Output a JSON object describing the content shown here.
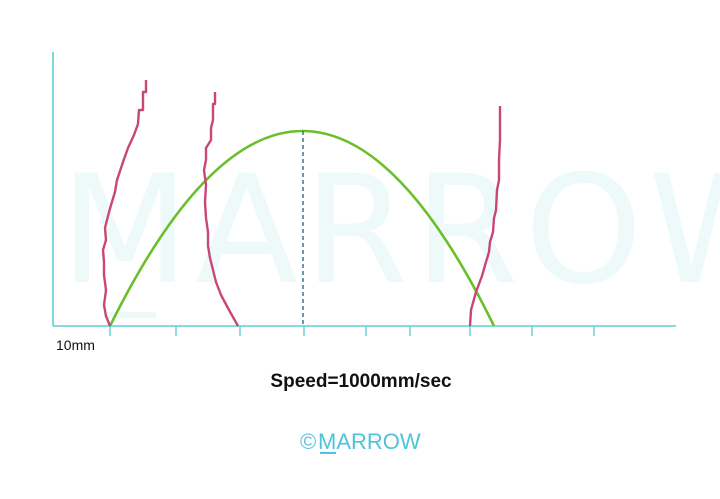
{
  "colors": {
    "axis": "#5ecfd3",
    "curve": "#6abf2a",
    "trace": "#c94774",
    "dashed": "#2a6b8a",
    "watermark": "#eefafa",
    "brand": "#4fc3d8",
    "text": "#111111"
  },
  "labels": {
    "start_tick": "10mm",
    "caption": "Speed=1000mm/sec"
  },
  "watermark": {
    "text": "MARROW"
  },
  "brand": {
    "symbol": "©",
    "name": "MARROW"
  }
}
